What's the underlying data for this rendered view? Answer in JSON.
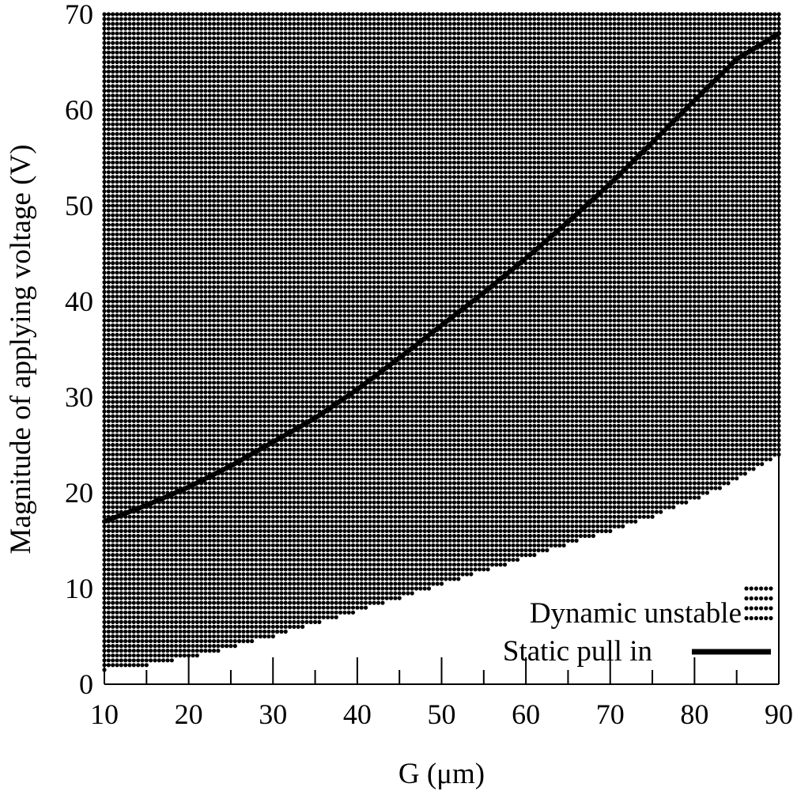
{
  "chart_data": {
    "type": "scatter",
    "xlabel": "G (μm)",
    "ylabel": "Magnitude of applying voltage (V)",
    "xlim": [
      10,
      90
    ],
    "ylim": [
      0,
      70
    ],
    "x_ticks": [
      10,
      20,
      30,
      40,
      50,
      60,
      70,
      80,
      90
    ],
    "y_ticks": [
      0,
      10,
      20,
      30,
      40,
      50,
      60,
      70
    ],
    "grid": false,
    "legend_position": "bottom-right",
    "series": [
      {
        "name": "Dynamic unstable",
        "kind": "region",
        "color": "#000000",
        "lower_boundary": {
          "x": [
            10,
            15,
            20,
            25,
            30,
            35,
            40,
            45,
            50,
            55,
            60,
            65,
            70,
            75,
            80,
            85,
            90
          ],
          "y": [
            1.5,
            2.0,
            2.8,
            3.8,
            5.0,
            6.3,
            7.6,
            9.0,
            10.4,
            11.8,
            13.2,
            14.6,
            16.0,
            17.5,
            19.2,
            21.3,
            24.0
          ]
        },
        "upper_bound": 70,
        "step_x": 0.5,
        "step_y": 0.5
      },
      {
        "name": "Static pull in",
        "kind": "line",
        "color": "#000000",
        "x": [
          10,
          15,
          20,
          25,
          30,
          35,
          40,
          45,
          50,
          55,
          60,
          65,
          70,
          75,
          80,
          85,
          90
        ],
        "y": [
          17,
          18.7,
          20.6,
          22.8,
          25.3,
          27.8,
          30.8,
          34.1,
          37.5,
          40.9,
          44.5,
          48.3,
          52.3,
          56.6,
          61.0,
          65.3,
          68.0
        ]
      }
    ]
  }
}
